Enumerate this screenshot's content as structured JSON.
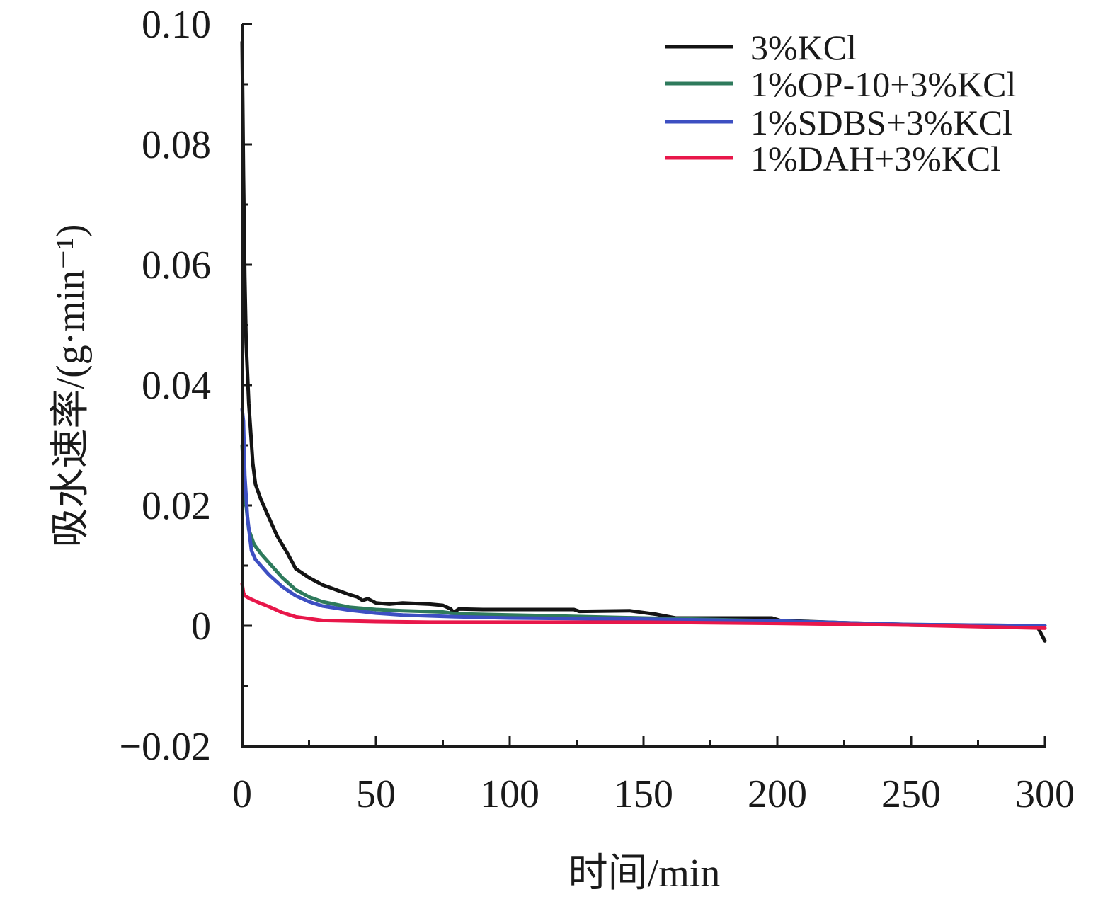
{
  "chart_data": {
    "type": "line",
    "title": "",
    "xlabel": "时间/min",
    "ylabel": "吸水速率/(g·min⁻¹)",
    "xlim": [
      0,
      300
    ],
    "ylim": [
      -0.02,
      0.1
    ],
    "xticks": [
      0,
      50,
      100,
      150,
      200,
      250,
      300
    ],
    "xticklabels": [
      "0",
      "50",
      "100",
      "150",
      "200",
      "250",
      "300"
    ],
    "yticks": [
      -0.02,
      0,
      0.02,
      0.04,
      0.06,
      0.08,
      0.1
    ],
    "yticklabels": [
      "−0.02",
      "0",
      "0.02",
      "0.04",
      "0.06",
      "0.08",
      "0.10"
    ],
    "grid": false,
    "legend": "top-right",
    "series": [
      {
        "name": "3%KCl",
        "color": "#141414",
        "x": [
          0,
          0.5,
          1,
          1.5,
          2.5,
          4,
          5,
          7,
          10,
          13,
          17,
          20,
          25,
          30,
          35,
          40,
          43,
          45,
          47,
          50,
          55,
          60,
          70,
          75,
          78,
          79,
          81,
          90,
          100,
          124,
          126,
          145,
          155,
          162,
          198,
          201,
          225,
          250,
          275,
          297,
          300
        ],
        "y": [
          0.097,
          0.075,
          0.058,
          0.047,
          0.037,
          0.027,
          0.0235,
          0.021,
          0.018,
          0.015,
          0.012,
          0.0095,
          0.008,
          0.0068,
          0.006,
          0.0052,
          0.0048,
          0.0042,
          0.0045,
          0.0038,
          0.0036,
          0.0038,
          0.0036,
          0.0034,
          0.0028,
          0.0022,
          0.0028,
          0.0027,
          0.0027,
          0.0027,
          0.0024,
          0.0025,
          0.0019,
          0.0013,
          0.0013,
          0.0009,
          0.0005,
          0.0001,
          0,
          0,
          -0.0025
        ]
      },
      {
        "name": "1%OP-10+3%KCl",
        "color": "#2e7a5c",
        "x": [
          0,
          1,
          2.5,
          4.5,
          7,
          10,
          15,
          20,
          25,
          30,
          40,
          50,
          60,
          75,
          80,
          100,
          150,
          200,
          250,
          300
        ],
        "y": [
          0.03,
          0.022,
          0.016,
          0.0135,
          0.012,
          0.0105,
          0.008,
          0.006,
          0.0048,
          0.004,
          0.0031,
          0.0027,
          0.0025,
          0.0023,
          0.002,
          0.0018,
          0.0013,
          0.0008,
          0.0002,
          0
        ]
      },
      {
        "name": "1%SDBS+3%KCl",
        "color": "#3d4fc2",
        "x": [
          0,
          0.5,
          1,
          2,
          3.5,
          5,
          10,
          15,
          20,
          25,
          30,
          40,
          50,
          60,
          80,
          100,
          150,
          200,
          250,
          300
        ],
        "y": [
          0.036,
          0.034,
          0.025,
          0.018,
          0.0125,
          0.011,
          0.0085,
          0.0065,
          0.005,
          0.004,
          0.0033,
          0.0026,
          0.0021,
          0.0018,
          0.0015,
          0.0013,
          0.0011,
          0.0008,
          0.0002,
          0
        ]
      },
      {
        "name": "1%DAH+3%KCl",
        "color": "#e8174a",
        "x": [
          0,
          0.5,
          1,
          3,
          6,
          10,
          15,
          20,
          30,
          50,
          70,
          100,
          150,
          200,
          250,
          300
        ],
        "y": [
          0.007,
          0.0055,
          0.005,
          0.0045,
          0.0039,
          0.0032,
          0.0022,
          0.0015,
          0.0009,
          0.0007,
          0.0006,
          0.0006,
          0.0006,
          0.0004,
          0.0001,
          -0.0004
        ]
      }
    ]
  }
}
